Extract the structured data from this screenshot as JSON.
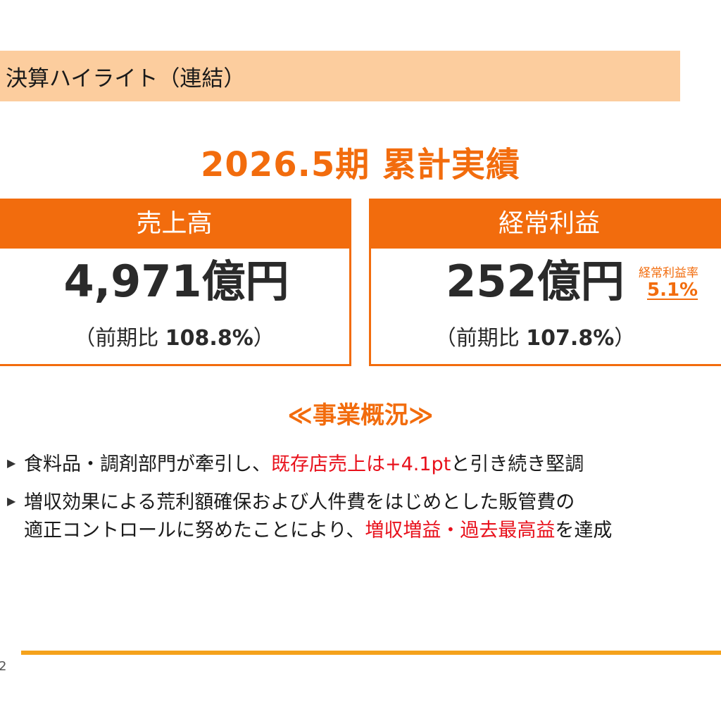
{
  "header": {
    "title": "決算ハイライト（連結）"
  },
  "period_title": "2026.5期 累計実績",
  "kpis": {
    "sales": {
      "label": "売上高",
      "value": "4,971億円",
      "ratio_prefix": "（前期比 ",
      "ratio_value": "108.8%",
      "ratio_suffix": "）"
    },
    "ordinary_profit": {
      "label": "経常利益",
      "value": "252億円",
      "ratio_prefix": "（前期比 ",
      "ratio_value": "107.8%",
      "ratio_suffix": "）",
      "margin_label": "経常利益率",
      "margin_value": "5.1%"
    }
  },
  "overview": {
    "title": "≪事業概況≫",
    "bullets": [
      {
        "parts": [
          {
            "text": "食料品・調剤部門が牽引し、",
            "highlight": false
          },
          {
            "text": "既存店売上は+4.1pt",
            "highlight": true
          },
          {
            "text": "と引き続き堅調",
            "highlight": false
          }
        ]
      },
      {
        "line1": "増収効果による荒利額確保および人件費をはじめとした販管費の",
        "line2_parts": [
          {
            "text": "適正コントロールに努めたことにより、",
            "highlight": false
          },
          {
            "text": "増収増益・過去最高益",
            "highlight": true
          },
          {
            "text": "を達成",
            "highlight": false
          }
        ]
      }
    ]
  },
  "footer": {
    "page_number": "2"
  },
  "colors": {
    "accent": "#f26c0d",
    "header_band": "#fccd9e",
    "highlight_red": "#e8101b",
    "footer_rule": "#f5a21b"
  }
}
